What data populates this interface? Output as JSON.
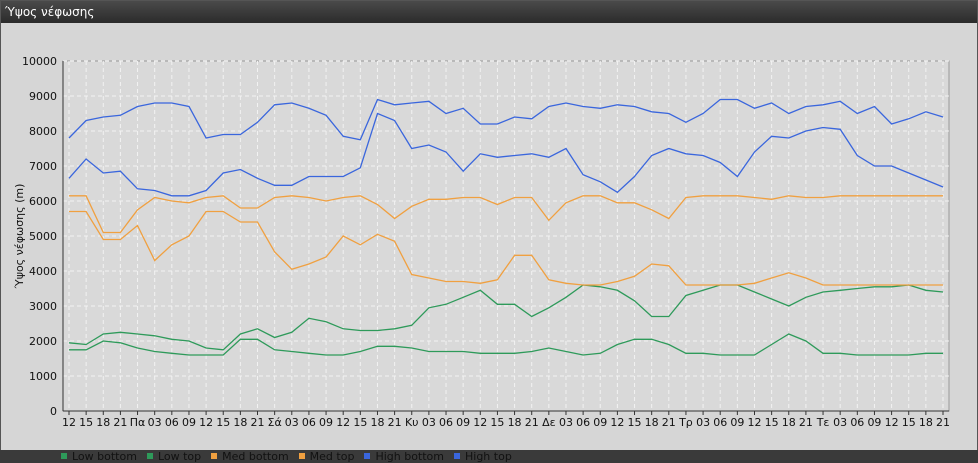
{
  "window": {
    "title": "Ύψος νέφωσης"
  },
  "chart_data": {
    "type": "line",
    "title": "",
    "xlabel": "",
    "ylabel": "Ύψος νέφωσης (m)",
    "ylim": [
      0,
      10000
    ],
    "yticks": [
      0,
      1000,
      2000,
      3000,
      4000,
      5000,
      6000,
      7000,
      8000,
      9000,
      10000
    ],
    "grid": true,
    "legend_position": "bottom-left",
    "categories": [
      "12",
      "15",
      "18",
      "21",
      "Πα",
      "03",
      "06",
      "09",
      "12",
      "15",
      "18",
      "21",
      "Σά",
      "03",
      "06",
      "09",
      "12",
      "15",
      "18",
      "21",
      "Κυ",
      "03",
      "06",
      "09",
      "12",
      "15",
      "18",
      "21",
      "Δε",
      "03",
      "06",
      "09",
      "12",
      "15",
      "18",
      "21",
      "Τρ",
      "03",
      "06",
      "09",
      "12",
      "15",
      "18",
      "21",
      "Τε",
      "03",
      "06",
      "09",
      "12",
      "15",
      "18",
      "21"
    ],
    "series": [
      {
        "name": "Low bottom",
        "color": "#2e9a5a",
        "values": [
          1750,
          1750,
          2000,
          1950,
          1800,
          1700,
          1650,
          1600,
          1600,
          1600,
          2050,
          2050,
          1750,
          1700,
          1650,
          1600,
          1600,
          1700,
          1850,
          1850,
          1800,
          1700,
          1700,
          1700,
          1650,
          1650,
          1650,
          1700,
          1800,
          1700,
          1600,
          1650,
          1900,
          2050,
          2050,
          1900,
          1650,
          1650,
          1600,
          1600,
          1600,
          1900,
          2200,
          2000,
          1650,
          1650,
          1600,
          1600,
          1600,
          1600,
          1650,
          1650
        ]
      },
      {
        "name": "Low top",
        "color": "#2e9a5a",
        "values": [
          1950,
          1900,
          2200,
          2250,
          2200,
          2150,
          2050,
          2000,
          1800,
          1750,
          2200,
          2350,
          2100,
          2250,
          2650,
          2550,
          2350,
          2300,
          2300,
          2350,
          2450,
          2950,
          3050,
          3250,
          3450,
          3050,
          3050,
          2700,
          2950,
          3250,
          3600,
          3550,
          3450,
          3150,
          2700,
          2700,
          3300,
          3450,
          3600,
          3600,
          3400,
          3200,
          3000,
          3250,
          3400,
          3450,
          3500,
          3550,
          3550,
          3600,
          3450,
          3400
        ]
      },
      {
        "name": "Med bottom",
        "color": "#f0a040",
        "values": [
          5700,
          5700,
          4900,
          4900,
          5300,
          4300,
          4750,
          5000,
          5700,
          5700,
          5400,
          5400,
          4550,
          4050,
          4200,
          4400,
          5000,
          4750,
          5050,
          4850,
          3900,
          3800,
          3700,
          3700,
          3650,
          3750,
          4450,
          4450,
          3750,
          3650,
          3600,
          3600,
          3700,
          3850,
          4200,
          4150,
          3600,
          3600,
          3600,
          3600,
          3650,
          3800,
          3950,
          3800,
          3600,
          3600,
          3600,
          3600,
          3600,
          3600,
          3600,
          3600
        ]
      },
      {
        "name": "Med top",
        "color": "#f0a040",
        "values": [
          6150,
          6150,
          5100,
          5100,
          5750,
          6100,
          6000,
          5950,
          6100,
          6150,
          5800,
          5800,
          6100,
          6150,
          6100,
          6000,
          6100,
          6150,
          5900,
          5500,
          5850,
          6050,
          6050,
          6100,
          6100,
          5900,
          6100,
          6100,
          5450,
          5950,
          6150,
          6150,
          5950,
          5950,
          5750,
          5500,
          6100,
          6150,
          6150,
          6150,
          6100,
          6050,
          6150,
          6100,
          6100,
          6150,
          6150,
          6150,
          6150,
          6150,
          6150,
          6150
        ]
      },
      {
        "name": "High bottom",
        "color": "#3a66dd",
        "values": [
          6650,
          7200,
          6800,
          6850,
          6350,
          6300,
          6150,
          6150,
          6300,
          6800,
          6900,
          6650,
          6450,
          6450,
          6700,
          6700,
          6700,
          6950,
          8500,
          8300,
          7500,
          7600,
          7400,
          6850,
          7350,
          7250,
          7300,
          7350,
          7250,
          7500,
          6750,
          6550,
          6250,
          6700,
          7300,
          7500,
          7350,
          7300,
          7100,
          6700,
          7400,
          7850,
          7800,
          8000,
          8100,
          8050,
          7300,
          7000,
          7000,
          6800,
          6600,
          6400
        ]
      },
      {
        "name": "High top",
        "color": "#3a66dd",
        "values": [
          7800,
          8300,
          8400,
          8450,
          8700,
          8800,
          8800,
          8700,
          7800,
          7900,
          7900,
          8250,
          8750,
          8800,
          8650,
          8450,
          7850,
          7750,
          8900,
          8750,
          8800,
          8850,
          8500,
          8650,
          8200,
          8200,
          8400,
          8350,
          8700,
          8800,
          8700,
          8650,
          8750,
          8700,
          8550,
          8500,
          8250,
          8500,
          8900,
          8900,
          8650,
          8800,
          8500,
          8700,
          8750,
          8850,
          8500,
          8700,
          8200,
          8350,
          8550,
          8400
        ]
      }
    ]
  }
}
